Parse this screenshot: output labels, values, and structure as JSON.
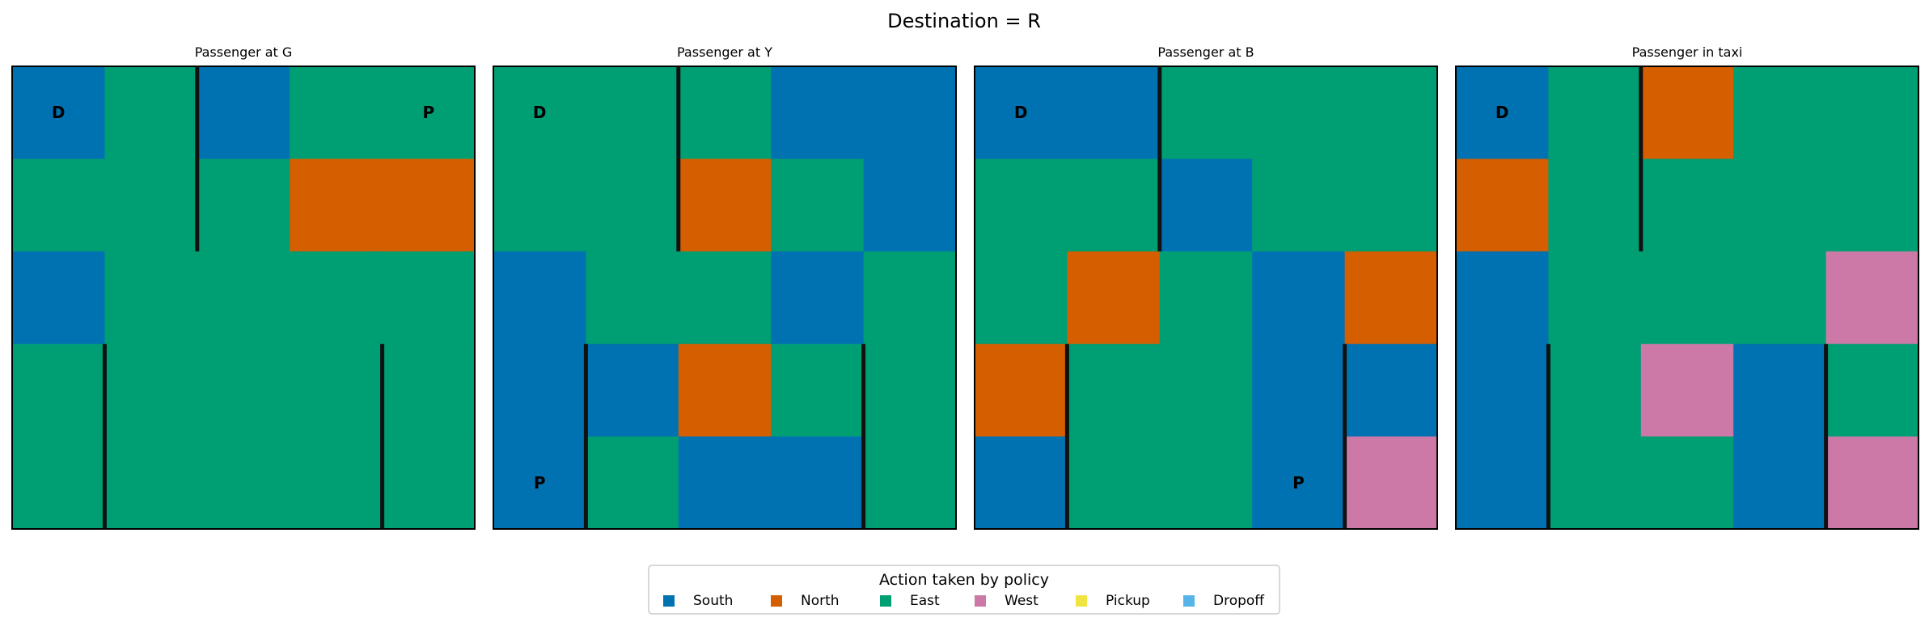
{
  "title": "Destination = R",
  "legend": {
    "title": "Action taken by policy",
    "placement": "bottom-center",
    "items": [
      {
        "label": "South",
        "color": "#0072b2"
      },
      {
        "label": "North",
        "color": "#d55e00"
      },
      {
        "label": "East",
        "color": "#009e73"
      },
      {
        "label": "West",
        "color": "#cc79a7"
      },
      {
        "label": "Pickup",
        "color": "#f0e442"
      },
      {
        "label": "Dropoff",
        "color": "#56b4e9"
      }
    ]
  },
  "chart_data": [
    {
      "type": "heatmap",
      "title": "Passenger at G",
      "rows": 5,
      "cols": 5,
      "grid": [
        [
          "South",
          "East",
          "South",
          "East",
          "East"
        ],
        [
          "East",
          "East",
          "East",
          "North",
          "North"
        ],
        [
          "South",
          "East",
          "East",
          "East",
          "East"
        ],
        [
          "East",
          "East",
          "East",
          "East",
          "East"
        ],
        [
          "East",
          "East",
          "East",
          "East",
          "East"
        ]
      ],
      "markers": [
        {
          "label": "D",
          "row": 0,
          "col": 0
        },
        {
          "label": "P",
          "row": 0,
          "col": 4
        }
      ]
    },
    {
      "type": "heatmap",
      "title": "Passenger at Y",
      "rows": 5,
      "cols": 5,
      "grid": [
        [
          "East",
          "East",
          "East",
          "South",
          "South"
        ],
        [
          "East",
          "East",
          "North",
          "East",
          "South"
        ],
        [
          "South",
          "East",
          "East",
          "South",
          "East"
        ],
        [
          "South",
          "South",
          "North",
          "East",
          "East"
        ],
        [
          "South",
          "East",
          "South",
          "South",
          "East"
        ]
      ],
      "markers": [
        {
          "label": "D",
          "row": 0,
          "col": 0
        },
        {
          "label": "P",
          "row": 4,
          "col": 0
        }
      ]
    },
    {
      "type": "heatmap",
      "title": "Passenger at B",
      "rows": 5,
      "cols": 5,
      "grid": [
        [
          "South",
          "South",
          "East",
          "East",
          "East"
        ],
        [
          "East",
          "East",
          "South",
          "East",
          "East"
        ],
        [
          "East",
          "North",
          "East",
          "South",
          "North"
        ],
        [
          "North",
          "East",
          "East",
          "South",
          "South"
        ],
        [
          "South",
          "East",
          "East",
          "South",
          "West"
        ]
      ],
      "markers": [
        {
          "label": "D",
          "row": 0,
          "col": 0
        },
        {
          "label": "P",
          "row": 4,
          "col": 3
        }
      ]
    },
    {
      "type": "heatmap",
      "title": "Passenger in taxi",
      "rows": 5,
      "cols": 5,
      "grid": [
        [
          "South",
          "East",
          "North",
          "East",
          "East"
        ],
        [
          "North",
          "East",
          "East",
          "East",
          "East"
        ],
        [
          "South",
          "East",
          "East",
          "East",
          "West"
        ],
        [
          "South",
          "East",
          "West",
          "South",
          "East"
        ],
        [
          "South",
          "East",
          "East",
          "South",
          "West"
        ]
      ],
      "markers": [
        {
          "label": "D",
          "row": 0,
          "col": 0
        }
      ]
    }
  ]
}
